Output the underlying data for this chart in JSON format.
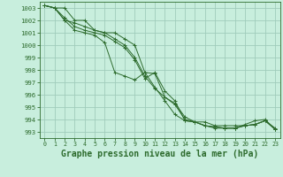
{
  "background_color": "#c8eedd",
  "grid_color": "#a0ccbb",
  "line_color": "#2d6b2d",
  "xlabel": "Graphe pression niveau de la mer (hPa)",
  "xlabel_fontsize": 7,
  "ylim": [
    992.5,
    1003.5
  ],
  "xlim": [
    -0.5,
    23.5
  ],
  "yticks": [
    993,
    994,
    995,
    996,
    997,
    998,
    999,
    1000,
    1001,
    1002,
    1003
  ],
  "xticks": [
    0,
    1,
    2,
    3,
    4,
    5,
    6,
    7,
    8,
    9,
    10,
    11,
    12,
    13,
    14,
    15,
    16,
    17,
    18,
    19,
    20,
    21,
    22,
    23
  ],
  "series": [
    [
      1003.2,
      1003.0,
      1003.0,
      1002.0,
      1002.0,
      1001.2,
      1001.0,
      1001.0,
      1000.5,
      1000.0,
      997.8,
      997.7,
      995.8,
      995.3,
      994.2,
      993.8,
      993.8,
      993.5,
      993.5,
      993.5,
      993.5,
      993.6,
      993.9,
      993.3
    ],
    [
      1003.2,
      1003.0,
      1002.0,
      1001.8,
      1001.5,
      1001.2,
      1001.0,
      1000.5,
      1000.0,
      999.0,
      997.5,
      996.5,
      995.8,
      995.2,
      994.0,
      993.8,
      993.5,
      993.4,
      993.3,
      993.3,
      993.5,
      993.6,
      993.9,
      993.2
    ],
    [
      1003.2,
      1003.0,
      1002.2,
      1001.5,
      1001.2,
      1001.0,
      1000.8,
      1000.3,
      999.8,
      998.8,
      997.3,
      997.8,
      996.3,
      995.5,
      993.9,
      993.8,
      993.5,
      993.4,
      993.3,
      993.3,
      993.5,
      993.6,
      993.9,
      993.2
    ],
    [
      1003.2,
      1003.0,
      1002.0,
      1001.2,
      1001.0,
      1000.8,
      1000.2,
      997.8,
      997.5,
      997.2,
      997.8,
      996.6,
      995.5,
      994.4,
      993.9,
      993.8,
      993.5,
      993.3,
      993.3,
      993.3,
      993.6,
      993.9,
      994.0,
      993.2
    ]
  ]
}
